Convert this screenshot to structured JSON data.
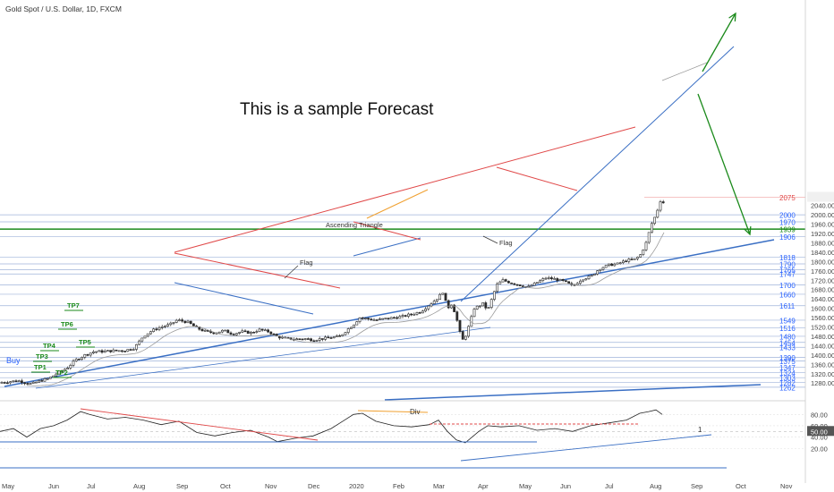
{
  "header": {
    "symbol_title": "Gold Spot / U.S. Dollar, 1D, FXCM"
  },
  "annotations": {
    "forecast_text": "This is a sample Forecast",
    "flag_1": "Flag",
    "flag_2": "Flag",
    "ascending_triangle": "Ascending Triangle",
    "buy": "Buy",
    "div": "Div",
    "tp_labels": [
      "TP1",
      "TP2",
      "TP3",
      "TP4",
      "TP5",
      "TP6",
      "TP7"
    ],
    "osc_marker": "1"
  },
  "colors": {
    "up": "#26a69a",
    "candle": "#2b2b2b",
    "red": "#e04848",
    "blue": "#3a6fc4",
    "green": "#1b8a1b",
    "orange": "#f0a030",
    "level": "#2962ff",
    "grid": "#9fb3da"
  },
  "chart_data": [
    {
      "type": "line",
      "title": "Gold Spot / U.S. Dollar, 1D, FXCM",
      "x_tick_labels": [
        "May",
        "Jun",
        "Jul",
        "Aug",
        "Sep",
        "Oct",
        "Nov",
        "Dec",
        "2020",
        "Feb",
        "Mar",
        "Apr",
        "May",
        "Jun",
        "Jul",
        "Aug",
        "Sep",
        "Oct",
        "Nov"
      ],
      "y_tick_labels": [
        "1280.00",
        "1320.00",
        "1360.00",
        "1400.00",
        "1440.00",
        "1480.00",
        "1520.00",
        "1560.00",
        "1600.00",
        "1640.00",
        "1680.00",
        "1720.00",
        "1760.00",
        "1800.00",
        "1840.00",
        "1880.00",
        "1920.00",
        "1960.00",
        "2000.00",
        "2040.00",
        "2080.00"
      ],
      "ylim": [
        1258,
        2085
      ],
      "horizontal_levels": [
        {
          "label": "2075",
          "value": 2075,
          "color": "red"
        },
        {
          "label": "2000",
          "value": 2000,
          "color": "blue"
        },
        {
          "label": "1970",
          "value": 1970,
          "color": "blue"
        },
        {
          "label": "1939",
          "value": 1939,
          "color": "green"
        },
        {
          "label": "1906",
          "value": 1906,
          "color": "blue"
        },
        {
          "label": "1818",
          "value": 1818,
          "color": "blue"
        },
        {
          "label": "1790",
          "value": 1790,
          "color": "blue"
        },
        {
          "label": "1765",
          "value": 1765,
          "color": "blue"
        },
        {
          "label": "1747",
          "value": 1747,
          "color": "blue"
        },
        {
          "label": "1700",
          "value": 1700,
          "color": "blue"
        },
        {
          "label": "1660",
          "value": 1660,
          "color": "blue"
        },
        {
          "label": "1611",
          "value": 1611,
          "color": "blue"
        },
        {
          "label": "1549",
          "value": 1549,
          "color": "blue"
        },
        {
          "label": "1516",
          "value": 1516,
          "color": "blue"
        },
        {
          "label": "1480",
          "value": 1480,
          "color": "blue"
        },
        {
          "label": "1454",
          "value": 1454,
          "color": "blue"
        },
        {
          "label": "1433",
          "value": 1433,
          "color": "blue"
        },
        {
          "label": "1390",
          "value": 1390,
          "color": "blue"
        },
        {
          "label": "1375",
          "value": 1375,
          "color": "blue"
        },
        {
          "label": "1347",
          "value": 1347,
          "color": "blue"
        },
        {
          "label": "1324",
          "value": 1324,
          "color": "blue"
        },
        {
          "label": "1303",
          "value": 1303,
          "color": "blue"
        },
        {
          "label": "1282",
          "value": 1282,
          "color": "blue"
        },
        {
          "label": "1262",
          "value": 1262,
          "color": "blue"
        }
      ],
      "price_path": [
        [
          0,
          1282
        ],
        [
          20,
          1290
        ],
        [
          35,
          1276
        ],
        [
          45,
          1290
        ],
        [
          55,
          1300
        ],
        [
          65,
          1325
        ],
        [
          75,
          1345
        ],
        [
          85,
          1380
        ],
        [
          95,
          1400
        ],
        [
          105,
          1415
        ],
        [
          115,
          1415
        ],
        [
          125,
          1418
        ],
        [
          140,
          1420
        ],
        [
          150,
          1430
        ],
        [
          160,
          1480
        ],
        [
          170,
          1505
        ],
        [
          180,
          1520
        ],
        [
          190,
          1530
        ],
        [
          198,
          1550
        ],
        [
          210,
          1540
        ],
        [
          220,
          1515
        ],
        [
          230,
          1500
        ],
        [
          240,
          1495
        ],
        [
          250,
          1505
        ],
        [
          260,
          1490
        ],
        [
          270,
          1500
        ],
        [
          280,
          1495
        ],
        [
          290,
          1508
        ],
        [
          300,
          1500
        ],
        [
          310,
          1478
        ],
        [
          320,
          1470
        ],
        [
          330,
          1468
        ],
        [
          340,
          1470
        ],
        [
          350,
          1465
        ],
        [
          360,
          1470
        ],
        [
          370,
          1475
        ],
        [
          380,
          1480
        ],
        [
          390,
          1515
        ],
        [
          395,
          1530
        ],
        [
          402,
          1560
        ],
        [
          410,
          1555
        ],
        [
          420,
          1550
        ],
        [
          430,
          1555
        ],
        [
          440,
          1560
        ],
        [
          450,
          1565
        ],
        [
          460,
          1575
        ],
        [
          470,
          1585
        ],
        [
          478,
          1610
        ],
        [
          488,
          1640
        ],
        [
          495,
          1670
        ],
        [
          500,
          1600
        ],
        [
          505,
          1620
        ],
        [
          510,
          1560
        ],
        [
          515,
          1480
        ],
        [
          518,
          1460
        ],
        [
          522,
          1500
        ],
        [
          530,
          1600
        ],
        [
          540,
          1620
        ],
        [
          545,
          1590
        ],
        [
          555,
          1700
        ],
        [
          562,
          1720
        ],
        [
          570,
          1710
        ],
        [
          580,
          1700
        ],
        [
          590,
          1690
        ],
        [
          600,
          1710
        ],
        [
          610,
          1730
        ],
        [
          620,
          1725
        ],
        [
          630,
          1715
        ],
        [
          640,
          1695
        ],
        [
          650,
          1725
        ],
        [
          660,
          1735
        ],
        [
          670,
          1770
        ],
        [
          680,
          1785
        ],
        [
          690,
          1790
        ],
        [
          700,
          1805
        ],
        [
          710,
          1810
        ],
        [
          716,
          1830
        ],
        [
          722,
          1880
        ],
        [
          728,
          1960
        ],
        [
          733,
          2000
        ],
        [
          738,
          2060
        ],
        [
          742,
          2050
        ]
      ]
    },
    {
      "type": "line",
      "y_tick_labels": [
        "80.00",
        "60.00",
        "40.00",
        "20.00"
      ],
      "ylim": [
        15,
        95
      ],
      "reference_level": {
        "label": "50.00",
        "value": 50
      },
      "values_path": [
        [
          0,
          50
        ],
        [
          15,
          55
        ],
        [
          30,
          40
        ],
        [
          45,
          55
        ],
        [
          60,
          60
        ],
        [
          75,
          70
        ],
        [
          90,
          85
        ],
        [
          100,
          80
        ],
        [
          120,
          72
        ],
        [
          140,
          75
        ],
        [
          160,
          70
        ],
        [
          180,
          62
        ],
        [
          200,
          68
        ],
        [
          220,
          48
        ],
        [
          240,
          42
        ],
        [
          260,
          48
        ],
        [
          280,
          52
        ],
        [
          300,
          40
        ],
        [
          310,
          32
        ],
        [
          330,
          38
        ],
        [
          350,
          42
        ],
        [
          370,
          55
        ],
        [
          380,
          65
        ],
        [
          395,
          80
        ],
        [
          405,
          82
        ],
        [
          420,
          68
        ],
        [
          440,
          60
        ],
        [
          460,
          58
        ],
        [
          480,
          62
        ],
        [
          490,
          70
        ],
        [
          500,
          50
        ],
        [
          510,
          35
        ],
        [
          520,
          30
        ],
        [
          535,
          50
        ],
        [
          545,
          60
        ],
        [
          560,
          58
        ],
        [
          580,
          60
        ],
        [
          600,
          52
        ],
        [
          620,
          55
        ],
        [
          640,
          50
        ],
        [
          660,
          60
        ],
        [
          680,
          65
        ],
        [
          700,
          70
        ],
        [
          715,
          82
        ],
        [
          725,
          85
        ],
        [
          733,
          88
        ],
        [
          740,
          80
        ]
      ]
    }
  ],
  "x_axis": {
    "labels": [
      "May",
      "Jun",
      "Jul",
      "Aug",
      "Sep",
      "Oct",
      "Nov",
      "Dec",
      "2020",
      "Feb",
      "Mar",
      "Apr",
      "May",
      "Jun",
      "Jul",
      "Aug",
      "Sep",
      "Oct",
      "Nov"
    ]
  }
}
